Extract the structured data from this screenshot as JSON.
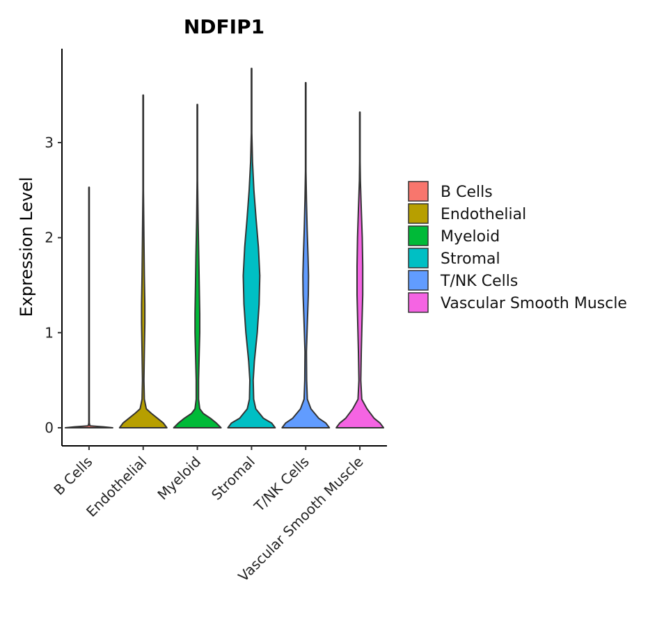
{
  "chart_data": {
    "type": "violin",
    "title": "NDFIP1",
    "xlabel": "",
    "ylabel": "Expression Level",
    "ylim": [
      -0.18,
      3.98
    ],
    "yticks": [
      0,
      1,
      2,
      3
    ],
    "categories": [
      "B Cells",
      "Endothelial",
      "Myeloid",
      "Stromal",
      "T/NK Cells",
      "Vascular Smooth Muscle"
    ],
    "legend": {
      "position": "right",
      "entries": [
        "B Cells",
        "Endothelial",
        "Myeloid",
        "Stromal",
        "T/NK Cells",
        "Vascular Smooth Muscle"
      ]
    },
    "colors": [
      "#F8766D",
      "#B79F00",
      "#00BA38",
      "#00BFC4",
      "#619CFF",
      "#F564E3"
    ],
    "series": [
      {
        "name": "B Cells",
        "max": 2.53,
        "profile": [
          [
            0,
            1.0
          ],
          [
            0.01,
            0.6
          ],
          [
            0.02,
            0.04
          ],
          [
            0.05,
            0.01
          ],
          [
            2.53,
            0.01
          ]
        ]
      },
      {
        "name": "Endothelial",
        "max": 3.5,
        "profile": [
          [
            0,
            1.0
          ],
          [
            0.05,
            0.85
          ],
          [
            0.1,
            0.6
          ],
          [
            0.15,
            0.35
          ],
          [
            0.2,
            0.13
          ],
          [
            0.3,
            0.05
          ],
          [
            0.5,
            0.03
          ],
          [
            0.8,
            0.05
          ],
          [
            1.1,
            0.07
          ],
          [
            1.3,
            0.07
          ],
          [
            1.6,
            0.05
          ],
          [
            2.0,
            0.03
          ],
          [
            2.5,
            0.01
          ],
          [
            3.5,
            0.01
          ]
        ]
      },
      {
        "name": "Myeloid",
        "max": 3.4,
        "profile": [
          [
            0,
            1.0
          ],
          [
            0.05,
            0.8
          ],
          [
            0.1,
            0.55
          ],
          [
            0.15,
            0.25
          ],
          [
            0.2,
            0.1
          ],
          [
            0.3,
            0.05
          ],
          [
            0.5,
            0.05
          ],
          [
            0.8,
            0.08
          ],
          [
            1.0,
            0.1
          ],
          [
            1.2,
            0.1
          ],
          [
            1.5,
            0.08
          ],
          [
            1.8,
            0.06
          ],
          [
            2.2,
            0.03
          ],
          [
            2.6,
            0.01
          ],
          [
            3.4,
            0.01
          ]
        ]
      },
      {
        "name": "Stromal",
        "max": 3.78,
        "profile": [
          [
            0,
            1.0
          ],
          [
            0.05,
            0.85
          ],
          [
            0.1,
            0.5
          ],
          [
            0.2,
            0.18
          ],
          [
            0.3,
            0.09
          ],
          [
            0.5,
            0.07
          ],
          [
            0.7,
            0.12
          ],
          [
            1.0,
            0.24
          ],
          [
            1.3,
            0.32
          ],
          [
            1.6,
            0.35
          ],
          [
            1.9,
            0.29
          ],
          [
            2.2,
            0.19
          ],
          [
            2.5,
            0.1
          ],
          [
            2.8,
            0.04
          ],
          [
            3.1,
            0.01
          ],
          [
            3.78,
            0.01
          ]
        ]
      },
      {
        "name": "T/NK Cells",
        "max": 3.63,
        "profile": [
          [
            0,
            1.0
          ],
          [
            0.05,
            0.85
          ],
          [
            0.1,
            0.55
          ],
          [
            0.2,
            0.22
          ],
          [
            0.3,
            0.07
          ],
          [
            0.5,
            0.04
          ],
          [
            0.8,
            0.03
          ],
          [
            1.1,
            0.07
          ],
          [
            1.4,
            0.11
          ],
          [
            1.6,
            0.12
          ],
          [
            1.8,
            0.1
          ],
          [
            2.1,
            0.06
          ],
          [
            2.4,
            0.03
          ],
          [
            2.7,
            0.01
          ],
          [
            3.63,
            0.01
          ]
        ]
      },
      {
        "name": "Vascular Smooth Muscle",
        "max": 3.32,
        "profile": [
          [
            0,
            1.0
          ],
          [
            0.05,
            0.85
          ],
          [
            0.1,
            0.6
          ],
          [
            0.2,
            0.3
          ],
          [
            0.3,
            0.08
          ],
          [
            0.5,
            0.04
          ],
          [
            0.8,
            0.06
          ],
          [
            1.1,
            0.09
          ],
          [
            1.4,
            0.12
          ],
          [
            1.7,
            0.12
          ],
          [
            2.0,
            0.1
          ],
          [
            2.3,
            0.06
          ],
          [
            2.6,
            0.02
          ],
          [
            2.8,
            0.01
          ],
          [
            3.32,
            0.01
          ]
        ]
      }
    ]
  }
}
